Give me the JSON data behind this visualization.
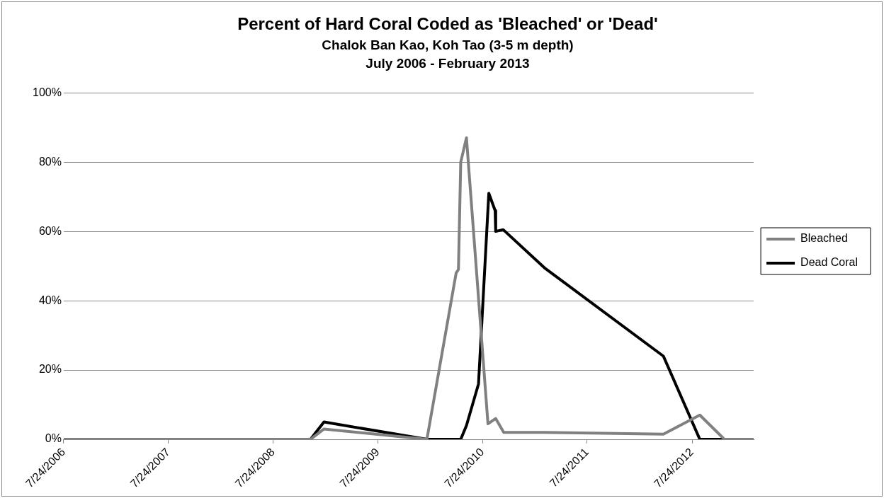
{
  "chart_data": {
    "type": "line",
    "title": "Percent of Hard Coral Coded as 'Bleached' or 'Dead'",
    "subtitle": "Chalok Ban Kao, Koh Tao (3-5 m depth)\nJuly 2006 - February 2013",
    "series": [
      {
        "name": "Bleached",
        "color": "#808080",
        "x": [
          "2006-07-24",
          "2008-12-01",
          "2009-01-17",
          "2010-01-11",
          "2010-04-23",
          "2010-05-01",
          "2010-05-09",
          "2010-05-29",
          "2010-08-12",
          "2010-09-08",
          "2010-10-06",
          "2011-02-25",
          "2012-04-15",
          "2012-08-20",
          "2012-11-14",
          "2013-02-24"
        ],
        "values": [
          0,
          0,
          3,
          0,
          48,
          49,
          80,
          87,
          4.5,
          6,
          2,
          2,
          1.5,
          7,
          0,
          0
        ]
      },
      {
        "name": "Dead Coral",
        "color": "#000000",
        "x": [
          "2006-07-24",
          "2008-12-01",
          "2009-01-17",
          "2010-01-11",
          "2010-05-09",
          "2010-05-29",
          "2010-07-10",
          "2010-08-15",
          "2010-09-06",
          "2010-09-08",
          "2010-10-04",
          "2011-02-25",
          "2012-04-15",
          "2012-08-20",
          "2013-02-24"
        ],
        "values": [
          0,
          0,
          5,
          0,
          0,
          4,
          16,
          71,
          66,
          60,
          60.5,
          49.5,
          24,
          0,
          0
        ]
      }
    ],
    "xlim": [
      "2006-07-24",
      "2013-02-24"
    ],
    "xticks": [
      {
        "value": "2006-07-24",
        "label": "7/24/2006"
      },
      {
        "value": "2007-07-24",
        "label": "7/24/2007"
      },
      {
        "value": "2008-07-24",
        "label": "7/24/2008"
      },
      {
        "value": "2009-07-24",
        "label": "7/24/2009"
      },
      {
        "value": "2010-07-24",
        "label": "7/24/2010"
      },
      {
        "value": "2011-07-24",
        "label": "7/24/2011"
      },
      {
        "value": "2012-07-24",
        "label": "7/24/2012"
      }
    ],
    "ylim": [
      0,
      100
    ],
    "yticks": [
      {
        "value": 0,
        "label": "0%"
      },
      {
        "value": 20,
        "label": "20%"
      },
      {
        "value": 40,
        "label": "40%"
      },
      {
        "value": 60,
        "label": "60%"
      },
      {
        "value": 80,
        "label": "80%"
      },
      {
        "value": 100,
        "label": "100%"
      }
    ],
    "grid": "y",
    "legend": "right",
    "marker": "none",
    "line_style": "solid"
  }
}
